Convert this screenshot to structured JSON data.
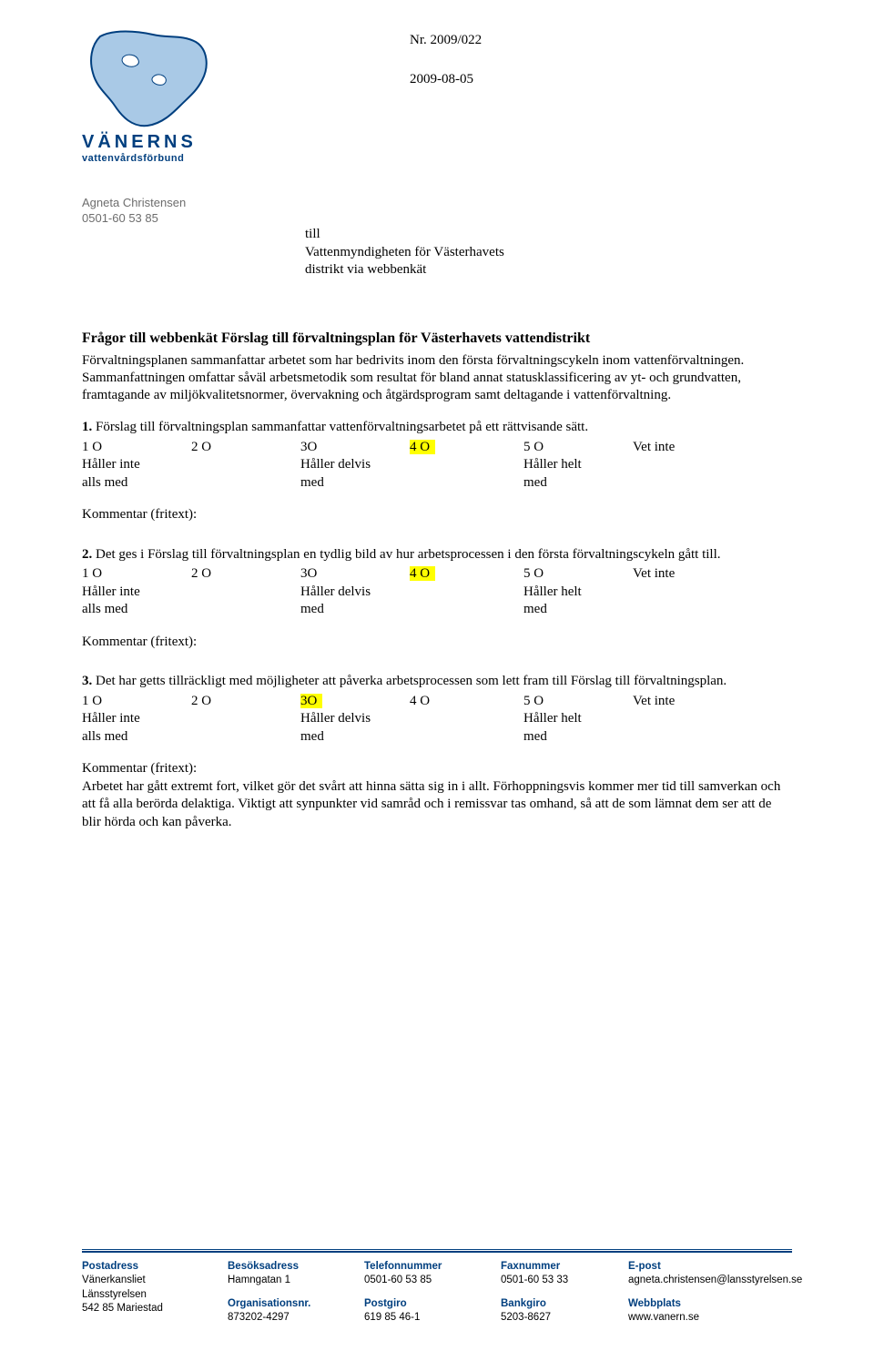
{
  "logo": {
    "org_name": "VÄNERNS",
    "org_sub": "vattenvårdsförbund",
    "water_fill": "#a9c9e6",
    "outline": "#003f7f",
    "text_color": "#003f7f"
  },
  "header": {
    "doc_number": "Nr. 2009/022",
    "date": "2009-08-05"
  },
  "sender": {
    "name": "Agneta Christensen",
    "phone": "0501-60 53 85"
  },
  "recipient": {
    "line1": "till",
    "line2": "Vattenmyndigheten för Västerhavets",
    "line3": "distrikt via webbenkät"
  },
  "title": "Frågor till webbenkät Förslag till förvaltningsplan för Västerhavets vattendistrikt",
  "intro": "Förvaltningsplanen sammanfattar arbetet som har bedrivits inom den första förvaltningscykeln inom vattenförvaltningen. Sammanfattningen omfattar såväl arbetsmetodik som resultat för bland annat statusklassificering av yt- och grundvatten, framtagande av miljökvalitetsnormer, övervakning och åtgärdsprogram samt deltagande i vattenförvaltning.",
  "scale": {
    "opt1": "1 O",
    "opt2": "2 O",
    "opt3": "3O",
    "opt4": "4 O",
    "opt5": "5 O",
    "opt6": "Vet inte",
    "lab1a": "Håller inte",
    "lab1b": "alls med",
    "lab3a": "Håller delvis",
    "lab3b": "med",
    "lab5a": "Håller helt",
    "lab5b": "med",
    "highlight_color": "#ffff00"
  },
  "questions": [
    {
      "num": "1.",
      "text": " Förslag till förvaltningsplan sammanfattar vattenförvaltningsarbetet på ett rättvisande sätt.",
      "highlight": 4,
      "comment_label": "Kommentar (fritext):",
      "comment_body": ""
    },
    {
      "num": "2.",
      "text": " Det ges i Förslag till förvaltningsplan en tydlig bild av hur arbetsprocessen i den första förvaltningscykeln gått till.",
      "highlight": 4,
      "comment_label": "Kommentar (fritext):",
      "comment_body": ""
    },
    {
      "num": "3.",
      "text": " Det har getts tillräckligt med möjligheter att påverka arbetsprocessen som lett fram till Förslag till förvaltningsplan.",
      "highlight": 3,
      "comment_label": "Kommentar (fritext):",
      "comment_body": "Arbetet har gått extremt fort, vilket gör det svårt att hinna sätta sig in i allt. Förhoppningsvis kommer mer tid till samverkan och att få alla berörda delaktiga. Viktigt att synpunkter vid samråd och i remissvar tas omhand, så att de som lämnat dem ser att de blir hörda och kan påverka."
    }
  ],
  "footer": {
    "rule_color": "#003f7f",
    "cols": [
      {
        "h1": "Postadress",
        "v1a": "Vänerkansliet",
        "v1b": "Länsstyrelsen",
        "v1c": "542 85 Mariestad",
        "h2": "",
        "v2": ""
      },
      {
        "h1": "Besöksadress",
        "v1a": "Hamngatan 1",
        "v1b": "",
        "v1c": "",
        "h2": "Organisationsnr.",
        "v2": "873202-4297"
      },
      {
        "h1": "Telefonnummer",
        "v1a": "0501-60 53 85",
        "v1b": "",
        "v1c": "",
        "h2": "Postgiro",
        "v2": "619 85 46-1"
      },
      {
        "h1": "Faxnummer",
        "v1a": "0501-60 53 33",
        "v1b": "",
        "v1c": "",
        "h2": "Bankgiro",
        "v2": "5203-8627"
      },
      {
        "h1": "E-post",
        "v1a": "agneta.christensen@lansstyrelsen.se",
        "v1b": "",
        "v1c": "",
        "h2": "Webbplats",
        "v2": "www.vanern.se"
      }
    ]
  }
}
